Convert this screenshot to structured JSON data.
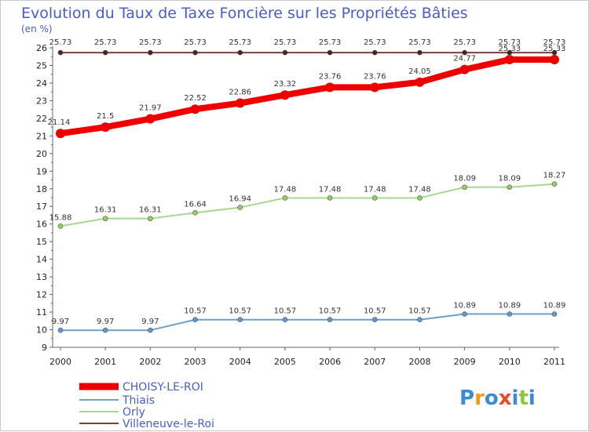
{
  "chart_data": {
    "type": "line",
    "title": "Evolution du Taux de Taxe Foncière sur les Propriétés Bâties",
    "unit_label": "(en %)",
    "xlabel": "",
    "ylabel": "",
    "ylim": [
      9,
      26
    ],
    "y_ticks": [
      "9",
      "10",
      "11",
      "12",
      "13",
      "14",
      "15",
      "16",
      "17",
      "18",
      "19",
      "20",
      "21",
      "22",
      "23",
      "24",
      "25",
      "26"
    ],
    "categories": [
      "2000",
      "2001",
      "2002",
      "2003",
      "2004",
      "2005",
      "2006",
      "2007",
      "2008",
      "2009",
      "2010",
      "2011"
    ],
    "series": [
      {
        "name": "CHOISY-LE-ROI",
        "color": "#ee0000",
        "marker_color": "#ee0000",
        "line_width": 8,
        "values": [
          21.14,
          21.5,
          21.97,
          22.52,
          22.86,
          23.32,
          23.76,
          23.76,
          24.05,
          24.77,
          25.33,
          25.33
        ],
        "labels": [
          "21.14",
          "21.5",
          "21.97",
          "22.52",
          "22.86",
          "23.32",
          "23.76",
          "23.76",
          "24.05",
          "24.77",
          "25.33",
          "25.33"
        ]
      },
      {
        "name": "Thiais",
        "color": "#6fa0c8",
        "marker_color": "#5a9ad6",
        "line_width": 2,
        "values": [
          9.97,
          9.97,
          9.97,
          10.57,
          10.57,
          10.57,
          10.57,
          10.57,
          10.57,
          10.89,
          10.89,
          10.89
        ],
        "labels": [
          "9.97",
          "9.97",
          "9.97",
          "10.57",
          "10.57",
          "10.57",
          "10.57",
          "10.57",
          "10.57",
          "10.89",
          "10.89",
          "10.89"
        ]
      },
      {
        "name": "Orly",
        "color": "#a8d890",
        "marker_color": "#8fd060",
        "line_width": 2,
        "values": [
          15.88,
          16.31,
          16.31,
          16.64,
          16.94,
          17.48,
          17.48,
          17.48,
          17.48,
          18.09,
          18.09,
          18.27
        ],
        "labels": [
          "15.88",
          "16.31",
          "16.31",
          "16.64",
          "16.94",
          "17.48",
          "17.48",
          "17.48",
          "17.48",
          "18.09",
          "18.09",
          "18.27"
        ]
      },
      {
        "name": "Villeneuve-le-Roi",
        "color": "#7a4040",
        "marker_color": "#4a2020",
        "line_width": 2,
        "values": [
          25.73,
          25.73,
          25.73,
          25.73,
          25.73,
          25.73,
          25.73,
          25.73,
          25.73,
          25.73,
          25.73,
          25.73
        ],
        "labels": [
          "25.73",
          "25.73",
          "25.73",
          "25.73",
          "25.73",
          "25.73",
          "25.73",
          "25.73",
          "25.73",
          "25.73",
          "25.73",
          "25.73"
        ]
      }
    ],
    "legend_position": "bottom-left",
    "grid": false
  },
  "logo": {
    "text": "Proxiti"
  }
}
